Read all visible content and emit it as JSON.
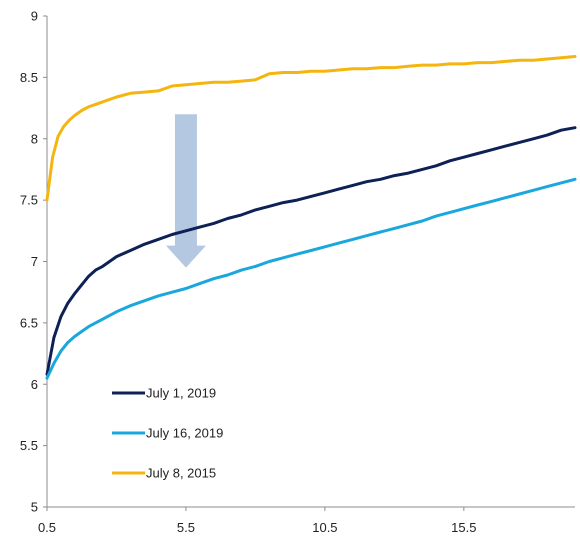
{
  "chart_data": {
    "type": "line",
    "title": "",
    "xlabel": "",
    "ylabel": "",
    "xlim": [
      0.5,
      19.5
    ],
    "ylim": [
      5,
      9
    ],
    "x_ticks": [
      "0.5",
      "5.5",
      "10.5",
      "15.5"
    ],
    "y_ticks": [
      "5",
      "5.5",
      "6",
      "6.5",
      "7",
      "7.5",
      "8",
      "8.5",
      "9"
    ],
    "grid": false,
    "legend_position": "bottom-left inside",
    "series": [
      {
        "name": "July 1, 2019",
        "color": "#0d2156",
        "points": [
          [
            0.5,
            6.08
          ],
          [
            0.75,
            6.38
          ],
          [
            1.0,
            6.55
          ],
          [
            1.25,
            6.66
          ],
          [
            1.5,
            6.74
          ],
          [
            1.75,
            6.81
          ],
          [
            2.0,
            6.88
          ],
          [
            2.25,
            6.93
          ],
          [
            2.5,
            6.96
          ],
          [
            3.0,
            7.04
          ],
          [
            3.5,
            7.09
          ],
          [
            4.0,
            7.14
          ],
          [
            4.5,
            7.18
          ],
          [
            5.0,
            7.22
          ],
          [
            5.5,
            7.25
          ],
          [
            6.0,
            7.28
          ],
          [
            6.5,
            7.31
          ],
          [
            7.0,
            7.35
          ],
          [
            7.5,
            7.38
          ],
          [
            8.0,
            7.42
          ],
          [
            8.5,
            7.45
          ],
          [
            9.0,
            7.48
          ],
          [
            9.5,
            7.5
          ],
          [
            10.0,
            7.53
          ],
          [
            10.5,
            7.56
          ],
          [
            11.0,
            7.59
          ],
          [
            11.5,
            7.62
          ],
          [
            12.0,
            7.65
          ],
          [
            12.5,
            7.67
          ],
          [
            13.0,
            7.7
          ],
          [
            13.5,
            7.72
          ],
          [
            14.0,
            7.75
          ],
          [
            14.5,
            7.78
          ],
          [
            15.0,
            7.82
          ],
          [
            15.5,
            7.85
          ],
          [
            16.0,
            7.88
          ],
          [
            16.5,
            7.91
          ],
          [
            17.0,
            7.94
          ],
          [
            17.5,
            7.97
          ],
          [
            18.0,
            8.0
          ],
          [
            18.5,
            8.03
          ],
          [
            19.0,
            8.07
          ],
          [
            19.5,
            8.09
          ]
        ]
      },
      {
        "name": "July 16, 2019",
        "color": "#1aa7dd",
        "points": [
          [
            0.5,
            6.05
          ],
          [
            0.75,
            6.17
          ],
          [
            1.0,
            6.27
          ],
          [
            1.25,
            6.34
          ],
          [
            1.5,
            6.39
          ],
          [
            1.75,
            6.43
          ],
          [
            2.0,
            6.47
          ],
          [
            2.5,
            6.53
          ],
          [
            3.0,
            6.59
          ],
          [
            3.5,
            6.64
          ],
          [
            4.0,
            6.68
          ],
          [
            4.5,
            6.72
          ],
          [
            5.0,
            6.75
          ],
          [
            5.5,
            6.78
          ],
          [
            6.0,
            6.82
          ],
          [
            6.5,
            6.86
          ],
          [
            7.0,
            6.89
          ],
          [
            7.5,
            6.93
          ],
          [
            8.0,
            6.96
          ],
          [
            8.5,
            7.0
          ],
          [
            9.0,
            7.03
          ],
          [
            9.5,
            7.06
          ],
          [
            10.0,
            7.09
          ],
          [
            10.5,
            7.12
          ],
          [
            11.0,
            7.15
          ],
          [
            11.5,
            7.18
          ],
          [
            12.0,
            7.21
          ],
          [
            12.5,
            7.24
          ],
          [
            13.0,
            7.27
          ],
          [
            13.5,
            7.3
          ],
          [
            14.0,
            7.33
          ],
          [
            14.5,
            7.37
          ],
          [
            15.0,
            7.4
          ],
          [
            15.5,
            7.43
          ],
          [
            16.0,
            7.46
          ],
          [
            16.5,
            7.49
          ],
          [
            17.0,
            7.52
          ],
          [
            17.5,
            7.55
          ],
          [
            18.0,
            7.58
          ],
          [
            18.5,
            7.61
          ],
          [
            19.0,
            7.64
          ],
          [
            19.5,
            7.67
          ]
        ]
      },
      {
        "name": "July 8, 2015",
        "color": "#f5b50f",
        "points": [
          [
            0.5,
            7.5
          ],
          [
            0.7,
            7.85
          ],
          [
            0.9,
            8.02
          ],
          [
            1.1,
            8.1
          ],
          [
            1.3,
            8.15
          ],
          [
            1.5,
            8.19
          ],
          [
            1.75,
            8.23
          ],
          [
            2.0,
            8.26
          ],
          [
            2.5,
            8.3
          ],
          [
            3.0,
            8.34
          ],
          [
            3.5,
            8.37
          ],
          [
            4.0,
            8.38
          ],
          [
            4.5,
            8.39
          ],
          [
            5.0,
            8.43
          ],
          [
            5.5,
            8.44
          ],
          [
            6.0,
            8.45
          ],
          [
            6.5,
            8.46
          ],
          [
            7.0,
            8.46
          ],
          [
            7.5,
            8.47
          ],
          [
            8.0,
            8.48
          ],
          [
            8.5,
            8.53
          ],
          [
            9.0,
            8.54
          ],
          [
            9.5,
            8.54
          ],
          [
            10.0,
            8.55
          ],
          [
            10.5,
            8.55
          ],
          [
            11.0,
            8.56
          ],
          [
            11.5,
            8.57
          ],
          [
            12.0,
            8.57
          ],
          [
            12.5,
            8.58
          ],
          [
            13.0,
            8.58
          ],
          [
            13.5,
            8.59
          ],
          [
            14.0,
            8.6
          ],
          [
            14.5,
            8.6
          ],
          [
            15.0,
            8.61
          ],
          [
            15.5,
            8.61
          ],
          [
            16.0,
            8.62
          ],
          [
            16.5,
            8.62
          ],
          [
            17.0,
            8.63
          ],
          [
            17.5,
            8.64
          ],
          [
            18.0,
            8.64
          ],
          [
            18.5,
            8.65
          ],
          [
            19.0,
            8.66
          ],
          [
            19.5,
            8.67
          ]
        ]
      }
    ],
    "annotations": [
      {
        "kind": "arrow-down",
        "color": "#b4c8e2",
        "x": 5.5,
        "y_from": 8.2,
        "y_to": 6.95
      }
    ]
  }
}
